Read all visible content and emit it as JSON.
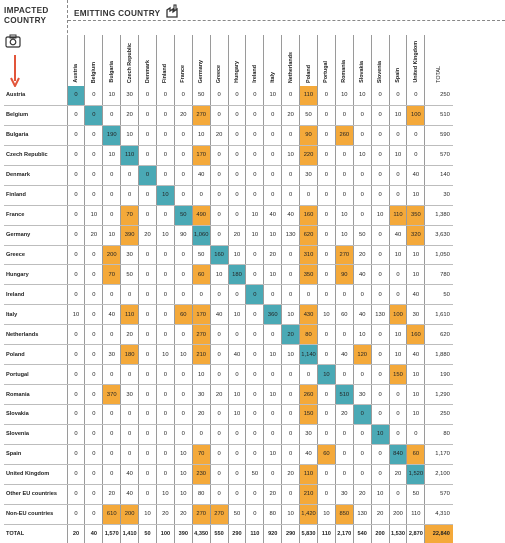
{
  "header": {
    "impacted_label": "IMPACTED COUNTRY",
    "emitting_label": "EMITTING COUNTRY",
    "total_label": "TOTAL"
  },
  "icons": [
    "factory-icon",
    "camera-icon",
    "arrow-down-icon"
  ],
  "colors": {
    "diagonal": "#4aa9b5",
    "highlight": "#f4a93a"
  },
  "columns": [
    "Austria",
    "Belgium",
    "Bulgaria",
    "Czech Republic",
    "Denmark",
    "Finland",
    "France",
    "Germany",
    "Greece",
    "Hungary",
    "Ireland",
    "Italy",
    "Netherlands",
    "Poland",
    "Portugal",
    "Romania",
    "Slovakia",
    "Slovenia",
    "Spain",
    "United Kingdom"
  ],
  "rows": [
    {
      "label": "Austria",
      "values": [
        "0",
        "0",
        "10",
        "30",
        "0",
        "0",
        "0",
        "50",
        "0",
        "0",
        "0",
        "10",
        "0",
        "110",
        "0",
        "10",
        "10",
        "0",
        "0",
        "0"
      ],
      "total": "250",
      "hl": [
        13
      ]
    },
    {
      "label": "Belgium",
      "values": [
        "0",
        "0",
        "0",
        "20",
        "0",
        "0",
        "20",
        "270",
        "0",
        "0",
        "0",
        "0",
        "20",
        "50",
        "0",
        "0",
        "0",
        "0",
        "10",
        "100"
      ],
      "total": "510",
      "hl": [
        7,
        19
      ]
    },
    {
      "label": "Bulgaria",
      "values": [
        "0",
        "0",
        "190",
        "10",
        "0",
        "0",
        "0",
        "10",
        "20",
        "0",
        "0",
        "0",
        "0",
        "90",
        "0",
        "260",
        "0",
        "0",
        "0",
        "0"
      ],
      "total": "590",
      "hl": [
        13,
        15
      ]
    },
    {
      "label": "Czech Republic",
      "values": [
        "0",
        "0",
        "10",
        "110",
        "0",
        "0",
        "0",
        "170",
        "0",
        "0",
        "0",
        "0",
        "10",
        "220",
        "0",
        "0",
        "10",
        "0",
        "10",
        "0"
      ],
      "total": "570",
      "hl": [
        7,
        13
      ]
    },
    {
      "label": "Denmark",
      "values": [
        "0",
        "0",
        "0",
        "0",
        "0",
        "0",
        "0",
        "40",
        "0",
        "0",
        "0",
        "0",
        "0",
        "30",
        "0",
        "0",
        "0",
        "0",
        "0",
        "40"
      ],
      "total": "140",
      "hl": []
    },
    {
      "label": "Finland",
      "values": [
        "0",
        "0",
        "0",
        "0",
        "0",
        "10",
        "0",
        "0",
        "0",
        "0",
        "0",
        "0",
        "0",
        "0",
        "0",
        "0",
        "0",
        "0",
        "0",
        "10"
      ],
      "total": "30",
      "hl": []
    },
    {
      "label": "France",
      "values": [
        "0",
        "10",
        "0",
        "70",
        "0",
        "0",
        "50",
        "490",
        "0",
        "0",
        "10",
        "40",
        "40",
        "160",
        "0",
        "10",
        "0",
        "10",
        "110",
        "350"
      ],
      "total": "1,380",
      "hl": [
        3,
        7,
        13,
        18,
        19
      ]
    },
    {
      "label": "Germany",
      "values": [
        "0",
        "20",
        "10",
        "390",
        "20",
        "10",
        "90",
        "1,060",
        "0",
        "20",
        "10",
        "10",
        "130",
        "620",
        "0",
        "10",
        "50",
        "0",
        "40",
        "320"
      ],
      "total": "3,630",
      "hl": [
        3,
        7,
        13,
        19
      ]
    },
    {
      "label": "Greece",
      "values": [
        "0",
        "0",
        "200",
        "30",
        "0",
        "0",
        "0",
        "50",
        "160",
        "10",
        "0",
        "20",
        "0",
        "310",
        "0",
        "270",
        "20",
        "0",
        "10",
        "10"
      ],
      "total": "1,050",
      "hl": [
        2,
        13,
        15
      ]
    },
    {
      "label": "Hungary",
      "values": [
        "0",
        "0",
        "70",
        "50",
        "0",
        "0",
        "0",
        "60",
        "10",
        "180",
        "0",
        "10",
        "0",
        "350",
        "0",
        "90",
        "40",
        "0",
        "0",
        "10"
      ],
      "total": "780",
      "hl": [
        2,
        7,
        13,
        15
      ]
    },
    {
      "label": "Ireland",
      "values": [
        "0",
        "0",
        "0",
        "0",
        "0",
        "0",
        "0",
        "0",
        "0",
        "0",
        "0",
        "0",
        "0",
        "0",
        "0",
        "0",
        "0",
        "0",
        "0",
        "40"
      ],
      "total": "50",
      "hl": []
    },
    {
      "label": "Italy",
      "values": [
        "10",
        "0",
        "40",
        "110",
        "0",
        "0",
        "60",
        "170",
        "40",
        "10",
        "0",
        "360",
        "10",
        "430",
        "10",
        "60",
        "40",
        "130",
        "100",
        "30"
      ],
      "total": "1,610",
      "hl": [
        3,
        6,
        7,
        13,
        18
      ]
    },
    {
      "label": "Netherlands",
      "values": [
        "0",
        "0",
        "0",
        "20",
        "0",
        "0",
        "0",
        "270",
        "0",
        "0",
        "0",
        "0",
        "20",
        "80",
        "0",
        "0",
        "10",
        "0",
        "10",
        "160"
      ],
      "total": "620",
      "hl": [
        7,
        13,
        19
      ]
    },
    {
      "label": "Poland",
      "values": [
        "0",
        "0",
        "30",
        "180",
        "0",
        "10",
        "10",
        "210",
        "0",
        "40",
        "0",
        "10",
        "10",
        "1,140",
        "0",
        "40",
        "120",
        "0",
        "10",
        "40"
      ],
      "total": "1,880",
      "hl": [
        3,
        7,
        16
      ]
    },
    {
      "label": "Portugal",
      "values": [
        "0",
        "0",
        "0",
        "0",
        "0",
        "0",
        "0",
        "10",
        "0",
        "0",
        "0",
        "0",
        "0",
        "0",
        "10",
        "0",
        "0",
        "0",
        "150",
        "10"
      ],
      "total": "190",
      "hl": [
        18
      ]
    },
    {
      "label": "Romania",
      "values": [
        "0",
        "0",
        "370",
        "30",
        "0",
        "0",
        "0",
        "30",
        "20",
        "10",
        "0",
        "10",
        "0",
        "260",
        "0",
        "510",
        "30",
        "0",
        "0",
        "10"
      ],
      "total": "1,290",
      "hl": [
        2,
        13
      ]
    },
    {
      "label": "Slovakia",
      "values": [
        "0",
        "0",
        "0",
        "0",
        "0",
        "0",
        "0",
        "20",
        "0",
        "10",
        "0",
        "0",
        "0",
        "150",
        "0",
        "20",
        "0",
        "0",
        "0",
        "10"
      ],
      "total": "250",
      "hl": [
        13
      ]
    },
    {
      "label": "Slovenia",
      "values": [
        "0",
        "0",
        "0",
        "0",
        "0",
        "0",
        "0",
        "0",
        "0",
        "0",
        "0",
        "0",
        "0",
        "30",
        "0",
        "0",
        "0",
        "10",
        "0",
        "0"
      ],
      "total": "80",
      "hl": []
    },
    {
      "label": "Spain",
      "values": [
        "0",
        "0",
        "0",
        "0",
        "0",
        "0",
        "10",
        "70",
        "0",
        "0",
        "0",
        "10",
        "0",
        "40",
        "60",
        "0",
        "0",
        "0",
        "840",
        "60"
      ],
      "total": "1,170",
      "hl": [
        7,
        14,
        19
      ]
    },
    {
      "label": "United Kingdom",
      "values": [
        "0",
        "0",
        "0",
        "40",
        "0",
        "0",
        "10",
        "230",
        "0",
        "0",
        "50",
        "0",
        "20",
        "110",
        "0",
        "0",
        "0",
        "0",
        "20",
        "1,520"
      ],
      "total": "2,100",
      "hl": [
        7,
        13
      ]
    },
    {
      "label": "Other EU countries",
      "values": [
        "0",
        "0",
        "20",
        "40",
        "0",
        "10",
        "10",
        "80",
        "0",
        "0",
        "0",
        "20",
        "0",
        "210",
        "0",
        "30",
        "20",
        "10",
        "0",
        "50"
      ],
      "total": "570",
      "hl": [
        13
      ]
    },
    {
      "label": "Non-EU countries",
      "values": [
        "0",
        "0",
        "610",
        "200",
        "10",
        "20",
        "20",
        "270",
        "270",
        "50",
        "0",
        "80",
        "10",
        "1,420",
        "10",
        "850",
        "130",
        "20",
        "200",
        "110"
      ],
      "total": "4,310",
      "hl": [
        2,
        3,
        7,
        8,
        13,
        15
      ]
    }
  ],
  "diagonal": {
    "0": 0,
    "1": 1,
    "2": 2,
    "3": 3,
    "4": 4,
    "5": 5,
    "6": 6,
    "7": 7,
    "8": 8,
    "9": 9,
    "10": 10,
    "11": 11,
    "12": 12,
    "13": 13,
    "14": 14,
    "15": 15,
    "16": 16,
    "17": 17,
    "18": 18,
    "19": 19
  },
  "totals": {
    "label": "TOTAL",
    "values": [
      "20",
      "40",
      "1,570",
      "1,410",
      "50",
      "100",
      "390",
      "4,350",
      "550",
      "290",
      "110",
      "920",
      "290",
      "5,830",
      "110",
      "2,170",
      "540",
      "200",
      "1,530",
      "2,870"
    ],
    "grand": "22,840"
  }
}
